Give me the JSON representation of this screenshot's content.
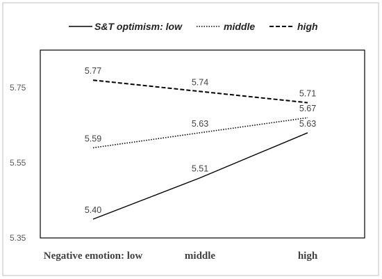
{
  "chart_data": {
    "type": "line",
    "categories": [
      "Negative emotion: low",
      "middle",
      "high"
    ],
    "series": [
      {
        "name": "S&T optimism: low",
        "values": [
          5.4,
          5.51,
          5.63
        ],
        "labels": [
          "5.40",
          "5.51",
          "5.63"
        ],
        "dash": "solid"
      },
      {
        "name": "middle",
        "values": [
          5.59,
          5.63,
          5.67
        ],
        "labels": [
          "5.59",
          "5.63",
          "5.67"
        ],
        "dash": "dotted"
      },
      {
        "name": "high",
        "values": [
          5.77,
          5.74,
          5.71
        ],
        "labels": [
          "5.77",
          "5.74",
          "5.71"
        ],
        "dash": "dashed"
      }
    ],
    "yticks": [
      "5.35",
      "5.55",
      "5.75"
    ],
    "ylim": [
      5.35,
      5.85
    ],
    "grid": false,
    "legend": "top",
    "title": "",
    "xlabel": "",
    "ylabel": ""
  }
}
